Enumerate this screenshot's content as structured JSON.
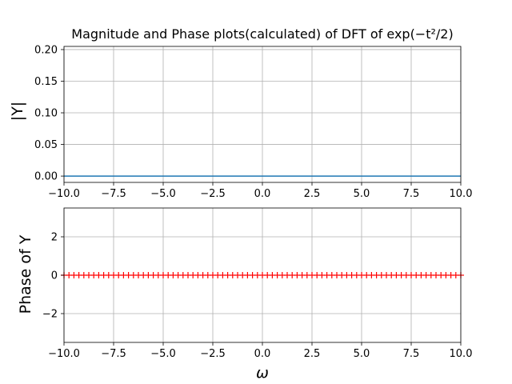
{
  "chart_data": [
    {
      "type": "line",
      "title": "Magnitude and Phase plots(calculated) of DFT of exp(−t²/2)",
      "ylabel": "|Y|",
      "xlabel": "",
      "xlim": [
        -10,
        10
      ],
      "ylim": [
        -0.01,
        0.205
      ],
      "xticks": [
        -10,
        -7.5,
        -5,
        -2.5,
        0,
        2.5,
        5,
        7.5,
        10
      ],
      "xtick_labels": [
        "−10.0",
        "−7.5",
        "−5.0",
        "−2.5",
        "0.0",
        "2.5",
        "5.0",
        "7.5",
        "10.0"
      ],
      "yticks": [
        0,
        0.05,
        0.1,
        0.15,
        0.2
      ],
      "ytick_labels": [
        "0.00",
        "0.05",
        "0.10",
        "0.15",
        "0.20"
      ],
      "grid": true,
      "series": [
        {
          "color": "#1f77b4",
          "x": [
            -10,
            10
          ],
          "y": [
            0,
            0
          ]
        }
      ]
    },
    {
      "type": "scatter",
      "title": "",
      "ylabel": "Phase of Y",
      "xlabel": "ω",
      "xlim": [
        -10,
        10
      ],
      "ylim": [
        -3.5,
        3.5
      ],
      "xticks": [
        -10,
        -7.5,
        -5,
        -2.5,
        0,
        2.5,
        5,
        7.5,
        10
      ],
      "xtick_labels": [
        "−10.0",
        "−7.5",
        "−5.0",
        "−2.5",
        "0.0",
        "2.5",
        "5.0",
        "7.5",
        "10.0"
      ],
      "yticks": [
        -2,
        0,
        2
      ],
      "ytick_labels": [
        "−2",
        "0",
        "2"
      ],
      "grid": true,
      "marker": "+",
      "series": [
        {
          "color": "#ff0000",
          "x_start": -10,
          "x_end": 10,
          "count": 81,
          "y_value": 0
        }
      ]
    }
  ]
}
